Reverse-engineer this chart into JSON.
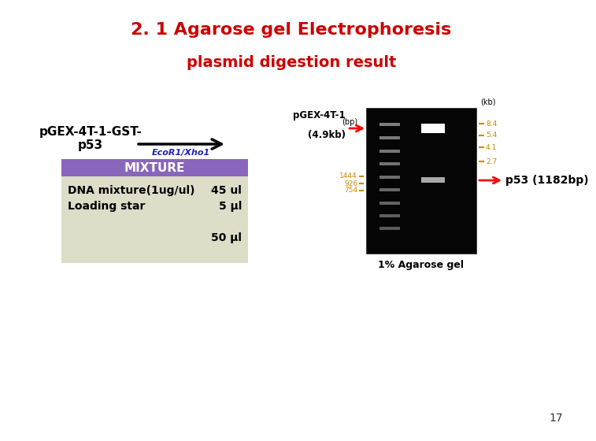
{
  "title": "2. 1 Agarose gel Electrophoresis",
  "subtitle": "plasmid digestion result",
  "title_color": "#cc0000",
  "subtitle_color": "#cc0000",
  "background_color": "#ffffff",
  "left_label_line1": "pGEX-4T-1-GST-",
  "left_label_line2": "p53",
  "arrow_label": "EcoR1/Xho1",
  "arrow_label_color": "#2222bb",
  "mixture_header": "MIXTURE",
  "mixture_header_bg": "#8866bb",
  "mixture_header_color": "#ffffff",
  "mixture_body_bg": "#ddddc8",
  "mixture_rows": [
    [
      "DNA mixture(1ug/ul)",
      "45 ul"
    ],
    [
      "Loading star",
      "5 μl"
    ]
  ],
  "mixture_total": "50 μl",
  "gel_label_top_line1": "pGEX-4T-1",
  "gel_label_top_line2": "(4.9kb)",
  "gel_label_bottom": "p53 (1182bp)",
  "gel_caption": "1% Agarose gel",
  "kb_label": "(kb)",
  "kb_markers": [
    "8.4",
    "5.4",
    "4.1",
    "2.7"
  ],
  "bp_label": "(bp)",
  "bp_markers": [
    "1444",
    "926",
    "754"
  ],
  "page_number": "17",
  "gel_bg": "#050505",
  "marker_color": "#cc8800"
}
